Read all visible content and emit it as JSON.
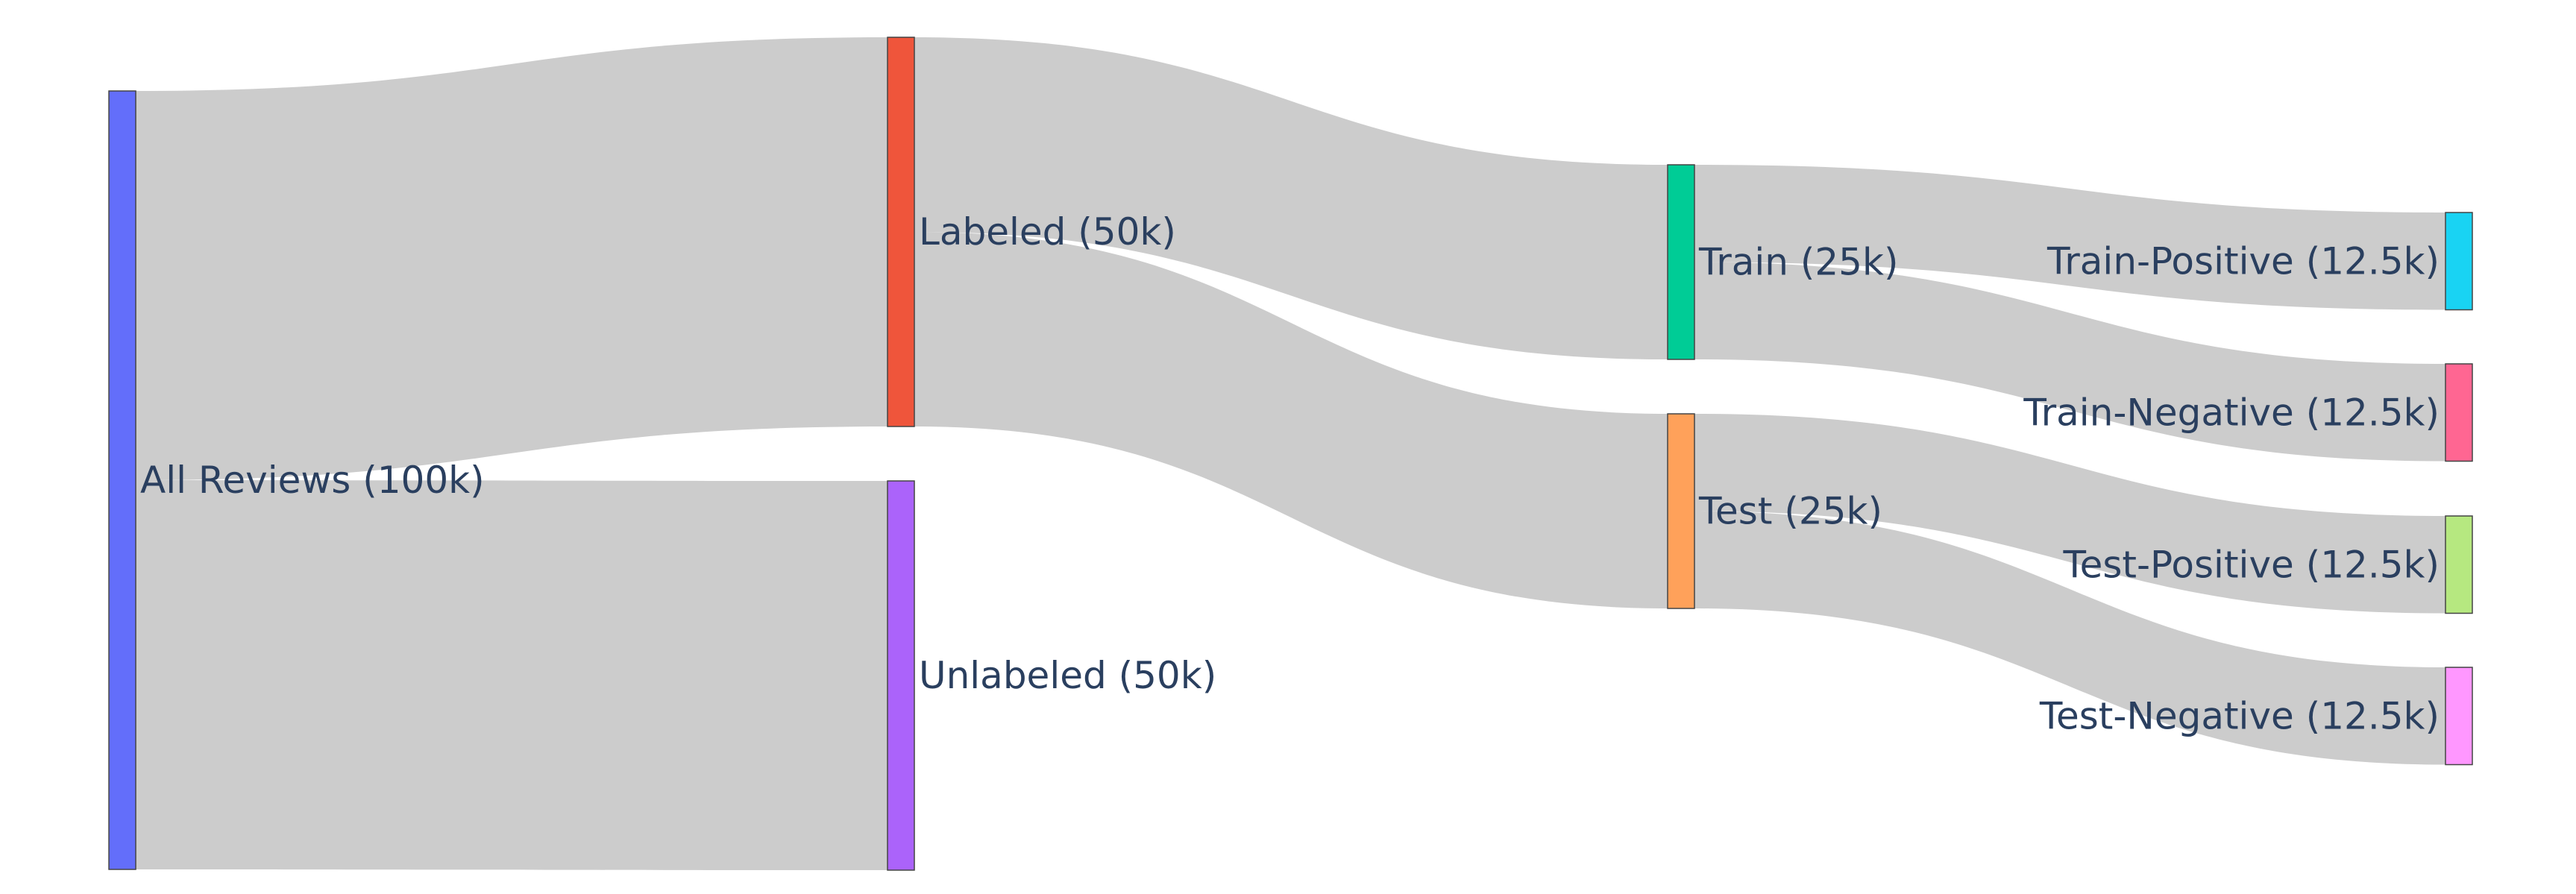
{
  "chart_data": {
    "type": "sankey",
    "nodes": [
      {
        "id": "all",
        "label": "All Reviews (100k)",
        "value": 100,
        "color": "#636efa"
      },
      {
        "id": "labeled",
        "label": "Labeled (50k)",
        "value": 50,
        "color": "#ef553b"
      },
      {
        "id": "unlabeled",
        "label": "Unlabeled (50k)",
        "value": 50,
        "color": "#ab63fa"
      },
      {
        "id": "train",
        "label": "Train (25k)",
        "value": 25,
        "color": "#00cc96"
      },
      {
        "id": "test",
        "label": "Test (25k)",
        "value": 25,
        "color": "#ffa15a"
      },
      {
        "id": "train_pos",
        "label": "Train-Positive (12.5k)",
        "value": 12.5,
        "color": "#19d3f3"
      },
      {
        "id": "train_neg",
        "label": "Train-Negative (12.5k)",
        "value": 12.5,
        "color": "#ff6692"
      },
      {
        "id": "test_pos",
        "label": "Test-Positive (12.5k)",
        "value": 12.5,
        "color": "#b6e880"
      },
      {
        "id": "test_neg",
        "label": "Test-Negative (12.5k)",
        "value": 12.5,
        "color": "#ff97ff"
      }
    ],
    "links": [
      {
        "source": "all",
        "target": "labeled",
        "value": 50
      },
      {
        "source": "all",
        "target": "unlabeled",
        "value": 50
      },
      {
        "source": "labeled",
        "target": "train",
        "value": 25
      },
      {
        "source": "labeled",
        "target": "test",
        "value": 25
      },
      {
        "source": "train",
        "target": "train_pos",
        "value": 12.5
      },
      {
        "source": "train",
        "target": "train_neg",
        "value": 12.5
      },
      {
        "source": "test",
        "target": "test_pos",
        "value": 12.5
      },
      {
        "source": "test",
        "target": "test_neg",
        "value": 12.5
      }
    ],
    "link_color": "#cccccc",
    "label_color": "#2a3f5f"
  }
}
